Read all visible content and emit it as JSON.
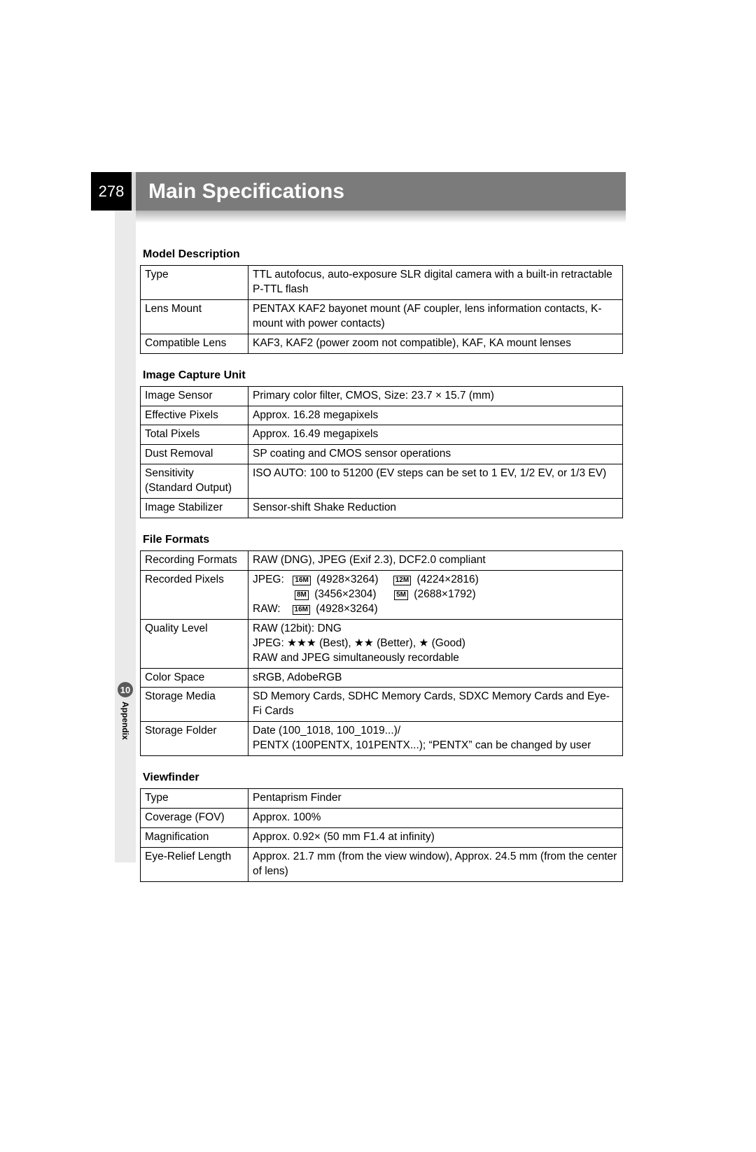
{
  "page": {
    "number": "278",
    "title": "Main Specifications",
    "chapter_num": "10",
    "chapter_name": "Appendix"
  },
  "colors": {
    "page_num_bg": "#000000",
    "title_bg": "#7b7b7b",
    "side_strip": "#eaeaea",
    "text": "#000000",
    "border": "#000000"
  },
  "sections": [
    {
      "title": "Model Description",
      "rows": [
        {
          "label": "Type",
          "value": "TTL autofocus, auto-exposure SLR digital camera with a built-in retractable P-TTL flash"
        },
        {
          "label": "Lens Mount",
          "value_html": "PENTAX K<span class='smallcaps'>AF2</span> bayonet mount (AF coupler, lens information contacts, K-mount with power contacts)"
        },
        {
          "label": "Compatible Lens",
          "value_html": "K<span class='smallcaps'>AF3</span>, K<span class='smallcaps'>AF2</span> (power zoom not compatible), K<span class='smallcaps'>AF</span>, K<span class='smallcaps'>A</span> mount lenses"
        }
      ]
    },
    {
      "title": "Image Capture Unit",
      "rows": [
        {
          "label": "Image Sensor",
          "value": "Primary color filter, CMOS, Size: 23.7 × 15.7 (mm)"
        },
        {
          "label": "Effective Pixels",
          "value": "Approx. 16.28 megapixels"
        },
        {
          "label": "Total Pixels",
          "value": "Approx. 16.49 megapixels"
        },
        {
          "label": "Dust Removal",
          "value": "SP coating and CMOS sensor operations"
        },
        {
          "label": "Sensitivity (Standard Output)",
          "value": "ISO AUTO: 100 to 51200 (EV steps can be set to 1 EV, 1/2 EV, or 1/3 EV)"
        },
        {
          "label": "Image Stabilizer",
          "value": "Sensor-shift Shake Reduction"
        }
      ]
    },
    {
      "title": "File Formats",
      "rows": [
        {
          "label": "Recording Formats",
          "value": "RAW (DNG), JPEG (Exif 2.3), DCF2.0 compliant"
        },
        {
          "label": "Recorded Pixels",
          "value_html": "JPEG:&nbsp;&nbsp;<span class='mp-badge'>16M</span> (4928×3264)&nbsp;&nbsp;&nbsp;&nbsp;<span class='mp-badge'>12M</span> (4224×2816)<br>&nbsp;&nbsp;&nbsp;&nbsp;&nbsp;&nbsp;&nbsp;&nbsp;&nbsp;&nbsp;&nbsp;&nbsp;&nbsp;<span class='mp-badge'>8M</span> (3456×2304)&nbsp;&nbsp;&nbsp;&nbsp;&nbsp;<span class='mp-badge'>5M</span> (2688×1792)<br>RAW:&nbsp;&nbsp;&nbsp;<span class='mp-badge'>16M</span> (4928×3264)"
        },
        {
          "label": "Quality Level",
          "value": "RAW (12bit): DNG\nJPEG: ★★★ (Best), ★★ (Better), ★ (Good)\nRAW and JPEG simultaneously recordable"
        },
        {
          "label": "Color Space",
          "value": "sRGB, AdobeRGB"
        },
        {
          "label": "Storage Media",
          "value": "SD Memory Cards, SDHC Memory Cards, SDXC Memory Cards and Eye-Fi Cards"
        },
        {
          "label": "Storage Folder",
          "value": "Date (100_1018, 100_1019...)/\nPENTX (100PENTX, 101PENTX...); “PENTX” can be changed by user"
        }
      ]
    },
    {
      "title": "Viewfinder",
      "rows": [
        {
          "label": "Type",
          "value": "Pentaprism Finder"
        },
        {
          "label": "Coverage (FOV)",
          "value": "Approx. 100%"
        },
        {
          "label": "Magnification",
          "value": "Approx. 0.92× (50 mm F1.4 at infinity)"
        },
        {
          "label": "Eye-Relief Length",
          "value": "Approx. 21.7 mm (from the view window), Approx. 24.5 mm (from the center of lens)"
        }
      ]
    }
  ]
}
